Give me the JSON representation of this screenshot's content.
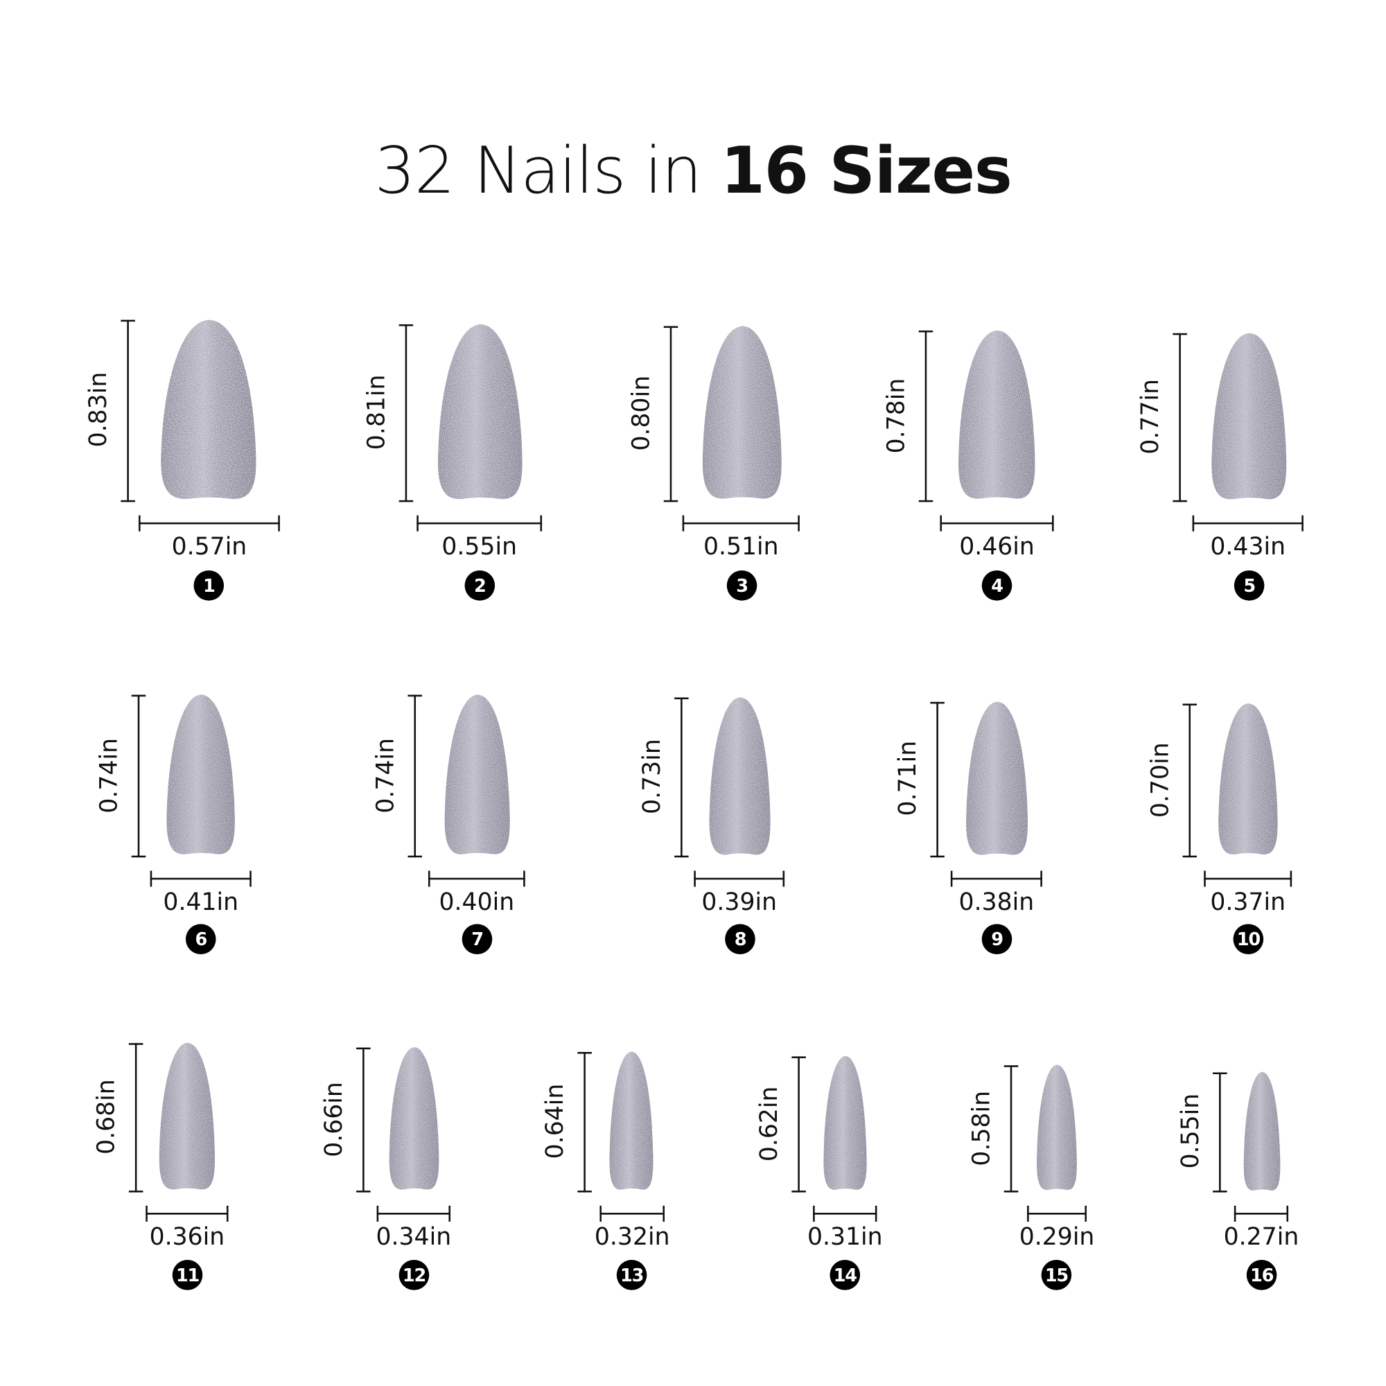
{
  "title": {
    "prefix": "32 Nails in ",
    "bold": "16 Sizes"
  },
  "nail_color": "#9d9bab",
  "nails": [
    {
      "number": "1",
      "height": "0.83in",
      "width": "0.57in"
    },
    {
      "number": "2",
      "height": "0.81in",
      "width": "0.55in"
    },
    {
      "number": "3",
      "height": "0.80in",
      "width": "0.51in"
    },
    {
      "number": "4",
      "height": "0.78in",
      "width": "0.46in"
    },
    {
      "number": "5",
      "height": "0.77in",
      "width": "0.43in"
    },
    {
      "number": "6",
      "height": "0.74in",
      "width": "0.41in"
    },
    {
      "number": "7",
      "height": "0.74in",
      "width": "0.40in"
    },
    {
      "number": "8",
      "height": "0.73in",
      "width": "0.39in"
    },
    {
      "number": "9",
      "height": "0.71in",
      "width": "0.38in"
    },
    {
      "number": "10",
      "height": "0.70in",
      "width": "0.37in"
    },
    {
      "number": "11",
      "height": "0.68in",
      "width": "0.36in"
    },
    {
      "number": "12",
      "height": "0.66in",
      "width": "0.34in"
    },
    {
      "number": "13",
      "height": "0.64in",
      "width": "0.32in"
    },
    {
      "number": "14",
      "height": "0.62in",
      "width": "0.31in"
    },
    {
      "number": "15",
      "height": "0.58in",
      "width": "0.29in"
    },
    {
      "number": "16",
      "height": "0.55in",
      "width": "0.27in"
    }
  ]
}
